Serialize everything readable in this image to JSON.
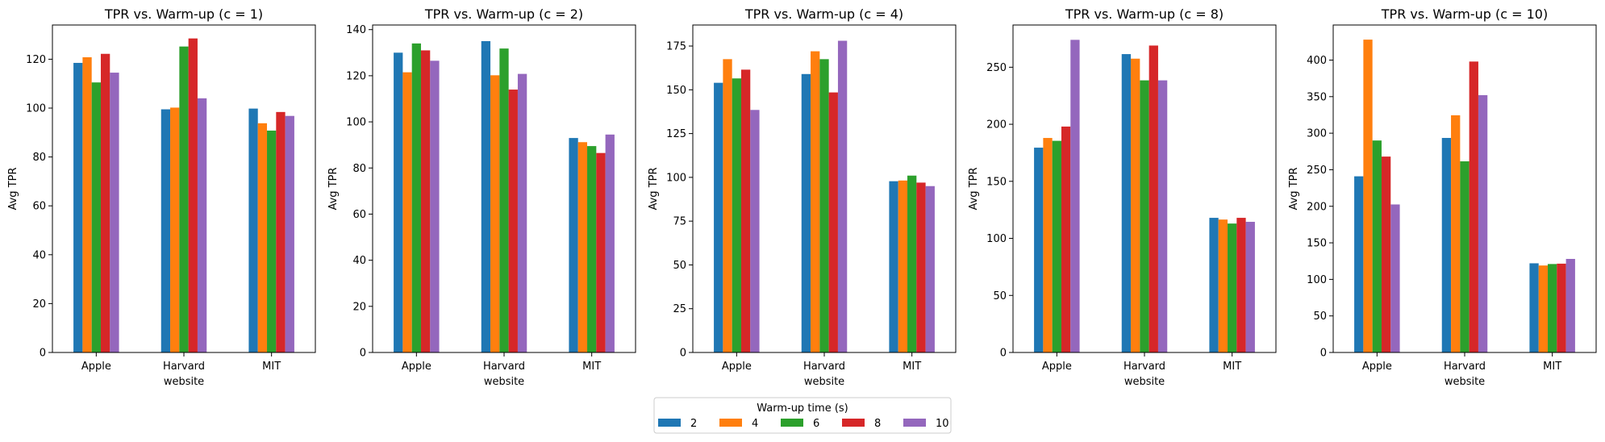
{
  "chart_data": {
    "type": "bar",
    "categories": [
      "Apple",
      "Harvard",
      "MIT"
    ],
    "xlabel": "website",
    "ylabel": "Avg TPR",
    "legend": {
      "title": "Warm-up time (s)",
      "placement": "bottom-center",
      "entries": [
        "2",
        "4",
        "6",
        "8",
        "10"
      ]
    },
    "colors": [
      "#1f77b4",
      "#ff7f0e",
      "#2ca02c",
      "#d62728",
      "#9467bd"
    ],
    "grid": false,
    "panels": [
      {
        "title": "TPR vs. Warm-up (c = 1)",
        "ylim": [
          0,
          134
        ],
        "yticks": [
          0,
          20,
          40,
          60,
          80,
          100,
          120
        ],
        "series": [
          {
            "name": "2",
            "values": [
              118.5,
              99.5,
              99.8
            ]
          },
          {
            "name": "4",
            "values": [
              120.8,
              100.2,
              93.8
            ]
          },
          {
            "name": "6",
            "values": [
              110.5,
              125.2,
              90.8
            ]
          },
          {
            "name": "8",
            "values": [
              122.2,
              128.5,
              98.4
            ]
          },
          {
            "name": "10",
            "values": [
              114.5,
              104.0,
              96.8
            ]
          }
        ]
      },
      {
        "title": "TPR vs. Warm-up (c = 2)",
        "ylim": [
          0,
          142
        ],
        "yticks": [
          0,
          20,
          40,
          60,
          80,
          100,
          120,
          140
        ],
        "series": [
          {
            "name": "2",
            "values": [
              130.0,
              135.0,
              93.0
            ]
          },
          {
            "name": "4",
            "values": [
              121.5,
              120.2,
              91.2
            ]
          },
          {
            "name": "6",
            "values": [
              134.0,
              131.8,
              89.5
            ]
          },
          {
            "name": "8",
            "values": [
              131.0,
              114.0,
              86.5
            ]
          },
          {
            "name": "10",
            "values": [
              126.5,
              120.8,
              94.5
            ]
          }
        ]
      },
      {
        "title": "TPR vs. Warm-up (c = 4)",
        "ylim": [
          0,
          187
        ],
        "yticks": [
          0,
          25,
          50,
          75,
          100,
          125,
          150,
          175
        ],
        "series": [
          {
            "name": "2",
            "values": [
              154.0,
              159.0,
              97.8
            ]
          },
          {
            "name": "4",
            "values": [
              167.5,
              172.0,
              98.2
            ]
          },
          {
            "name": "6",
            "values": [
              156.5,
              167.5,
              101.0
            ]
          },
          {
            "name": "8",
            "values": [
              161.5,
              148.5,
              97.0
            ]
          },
          {
            "name": "10",
            "values": [
              138.5,
              178.0,
              95.0
            ]
          }
        ]
      },
      {
        "title": "TPR vs. Warm-up (c = 8)",
        "ylim": [
          0,
          287
        ],
        "yticks": [
          0,
          50,
          100,
          150,
          200,
          250
        ],
        "series": [
          {
            "name": "2",
            "values": [
              179.5,
              261.5,
              118.0
            ]
          },
          {
            "name": "4",
            "values": [
              188.0,
              257.5,
              116.5
            ]
          },
          {
            "name": "6",
            "values": [
              185.5,
              238.5,
              113.0
            ]
          },
          {
            "name": "8",
            "values": [
              198.0,
              269.0,
              118.0
            ]
          },
          {
            "name": "10",
            "values": [
              274.0,
              238.5,
              114.5
            ]
          }
        ]
      },
      {
        "title": "TPR vs. Warm-up (c = 10)",
        "ylim": [
          0,
          448
        ],
        "yticks": [
          0,
          50,
          100,
          150,
          200,
          250,
          300,
          350,
          400
        ],
        "series": [
          {
            "name": "2",
            "values": [
              241.0,
              293.5,
              122.0
            ]
          },
          {
            "name": "4",
            "values": [
              428.0,
              324.5,
              119.0
            ]
          },
          {
            "name": "6",
            "values": [
              290.0,
              261.5,
              121.0
            ]
          },
          {
            "name": "8",
            "values": [
              268.0,
              398.0,
              121.5
            ]
          },
          {
            "name": "10",
            "values": [
              202.5,
              352.0,
              128.0
            ]
          }
        ]
      }
    ]
  }
}
